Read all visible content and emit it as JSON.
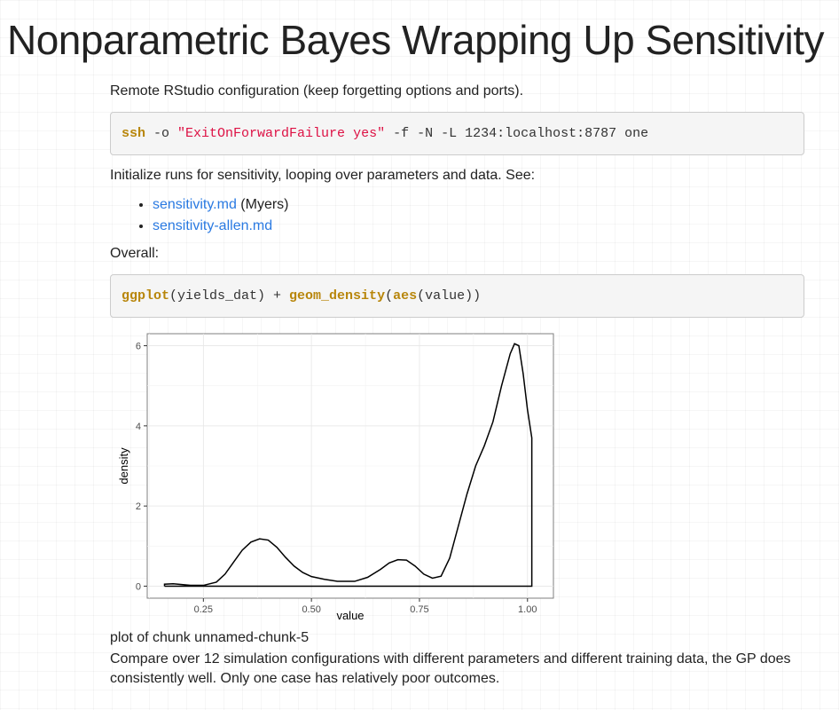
{
  "title": "Nonparametric Bayes Wrapping Up Sensitivity",
  "intro_text": "Remote RStudio configuration (keep forgetting options and ports).",
  "code1": {
    "cmd": "ssh",
    "opt": " -o ",
    "str": "\"ExitOnForwardFailure yes\"",
    "rest": " -f -N -L 1234:localhost:8787 one"
  },
  "init_text": "Initialize runs for sensitivity, looping over parameters and data. See:",
  "links": [
    {
      "label": "sensitivity.md",
      "suffix": " (Myers)"
    },
    {
      "label": "sensitivity-allen.md",
      "suffix": ""
    }
  ],
  "overall_text": "Overall:",
  "code2": {
    "fn1": "ggplot",
    "arg1": "(yields_dat) + ",
    "fn2": "geom_density",
    "open": "(",
    "fn3": "aes",
    "arg2": "(value))"
  },
  "caption": "plot of chunk unnamed-chunk-5",
  "conclusion": "Compare over 12 simulation configurations with different parameters and different training data, the GP does consistently well. Only one case has relatively poor outcomes.",
  "chart_data": {
    "type": "area",
    "title": "",
    "xlabel": "value",
    "ylabel": "density",
    "xlim": [
      0.12,
      1.06
    ],
    "ylim": [
      -0.3,
      6.3
    ],
    "xticks": [
      0.25,
      0.5,
      0.75,
      1.0
    ],
    "xtick_labels": [
      "0.25",
      "0.50",
      "0.75",
      "1.00"
    ],
    "yticks": [
      0,
      2,
      4,
      6
    ],
    "ytick_labels": [
      "0",
      "2",
      "4",
      "6"
    ],
    "grid": true,
    "x": [
      0.16,
      0.18,
      0.2,
      0.22,
      0.25,
      0.28,
      0.3,
      0.32,
      0.34,
      0.36,
      0.38,
      0.4,
      0.42,
      0.44,
      0.46,
      0.48,
      0.5,
      0.53,
      0.56,
      0.6,
      0.63,
      0.66,
      0.68,
      0.7,
      0.72,
      0.74,
      0.76,
      0.78,
      0.8,
      0.82,
      0.84,
      0.86,
      0.88,
      0.9,
      0.92,
      0.94,
      0.96,
      0.97,
      0.98,
      0.99,
      1.0,
      1.01,
      1.01
    ],
    "y": [
      0.05,
      0.06,
      0.04,
      0.02,
      0.02,
      0.1,
      0.3,
      0.6,
      0.9,
      1.1,
      1.18,
      1.15,
      0.97,
      0.72,
      0.5,
      0.34,
      0.24,
      0.17,
      0.12,
      0.12,
      0.22,
      0.42,
      0.58,
      0.66,
      0.65,
      0.5,
      0.3,
      0.2,
      0.25,
      0.7,
      1.5,
      2.3,
      3.0,
      3.5,
      4.1,
      5.0,
      5.8,
      6.05,
      6.0,
      5.3,
      4.4,
      3.7,
      0.0
    ]
  }
}
